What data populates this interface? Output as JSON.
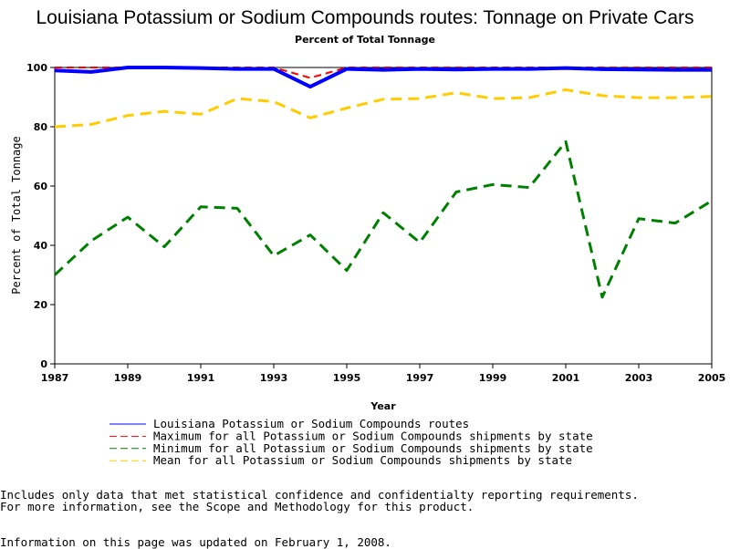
{
  "chart_data": {
    "type": "line",
    "title": "Louisiana Potassium or Sodium Compounds routes: Tonnage on Private Cars",
    "subtitle": "Percent of Total Tonnage",
    "xlabel": "Year",
    "ylabel": "Percent of Total Tonnage",
    "xlim": [
      1987,
      2005
    ],
    "ylim": [
      0,
      100
    ],
    "x_ticks": [
      "1987",
      "1989",
      "1991",
      "1993",
      "1995",
      "1997",
      "1999",
      "2001",
      "2003",
      "2005"
    ],
    "y_ticks": [
      "0",
      "20",
      "40",
      "60",
      "80",
      "100"
    ],
    "x": [
      1987,
      1988,
      1989,
      1990,
      1991,
      1992,
      1993,
      1994,
      1995,
      1996,
      1997,
      1998,
      1999,
      2000,
      2001,
      2002,
      2003,
      2004,
      2005
    ],
    "grid": false,
    "legend_position": "bottom",
    "series": [
      {
        "name": "Louisiana Potassium or Sodium Compounds routes",
        "color": "#0000ff",
        "dash": "solid",
        "values": [
          99,
          98.5,
          100,
          100,
          99.8,
          99.5,
          99.5,
          93.5,
          99.5,
          99.2,
          99.5,
          99.3,
          99.5,
          99.5,
          99.8,
          99.4,
          99.3,
          99.2,
          99.2
        ]
      },
      {
        "name": "Maximum for all Potassium or Sodium Compounds shipments by state",
        "color": "#ff0000",
        "dash": "dashed",
        "values": [
          100,
          100,
          100,
          100,
          100,
          100,
          100,
          96.5,
          100,
          100,
          100,
          100,
          100,
          100,
          100,
          100,
          100,
          100,
          100
        ]
      },
      {
        "name": "Minimum for all Potassium or Sodium Compounds shipments by state",
        "color": "#008000",
        "dash": "dashed",
        "values": [
          30,
          41.5,
          49.5,
          39.5,
          53,
          52.5,
          36.5,
          43.5,
          31.5,
          51,
          41,
          58,
          60.5,
          59.5,
          75,
          22.5,
          49,
          47.5,
          55
        ]
      },
      {
        "name": "Mean for all Potassium or Sodium Compounds shipments by state",
        "color": "#ffcc00",
        "dash": "dashed",
        "values": [
          80,
          80.8,
          83.8,
          85.2,
          84.2,
          89.5,
          88.5,
          83,
          86.3,
          89.3,
          89.5,
          91.5,
          89.5,
          89.8,
          92.5,
          90.5,
          89.8,
          89.8,
          90.2
        ]
      }
    ]
  },
  "notes": {
    "line1": "Includes only data that met statistical confidence and confidentialty reporting requirements.",
    "line2": "For more information, see the Scope and Methodology for this product.",
    "line3": "Information on this page was updated on February 1, 2008."
  }
}
